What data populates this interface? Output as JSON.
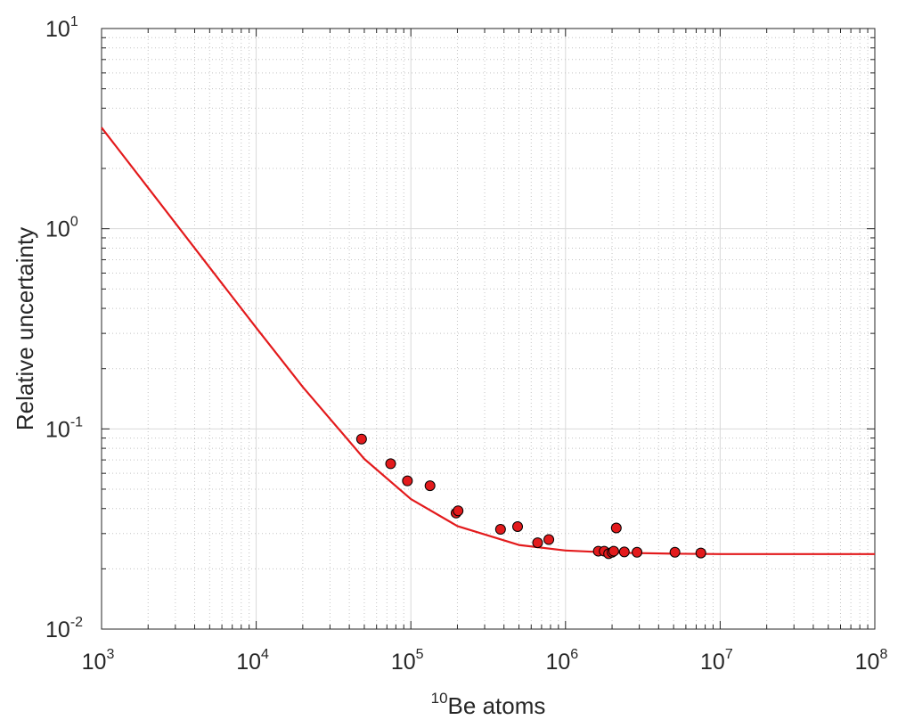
{
  "chart_data": {
    "type": "scatter",
    "xscale": "log",
    "yscale": "log",
    "xlim": [
      1000,
      100000000
    ],
    "ylim": [
      0.01,
      10
    ],
    "grid": true,
    "minor_grid": true,
    "x_ticks": [
      {
        "base": "10",
        "exp": "3",
        "value": 1000
      },
      {
        "base": "10",
        "exp": "4",
        "value": 10000
      },
      {
        "base": "10",
        "exp": "5",
        "value": 100000
      },
      {
        "base": "10",
        "exp": "6",
        "value": 1000000
      },
      {
        "base": "10",
        "exp": "7",
        "value": 10000000
      },
      {
        "base": "10",
        "exp": "8",
        "value": 100000000
      }
    ],
    "y_ticks": [
      {
        "base": "10",
        "exp": "-2",
        "value": 0.01
      },
      {
        "base": "10",
        "exp": "-1",
        "value": 0.1
      },
      {
        "base": "10",
        "exp": "0",
        "value": 1
      },
      {
        "base": "10",
        "exp": "1",
        "value": 10
      }
    ],
    "xlabel_sup": "10",
    "xlabel": "Be atoms",
    "ylabel": "Relative uncertainty",
    "series": [
      {
        "type": "scatter",
        "color": "#e31a1c",
        "edge_color": "#000000",
        "x": [
          48000,
          74000,
          95000,
          133000,
          196000,
          202000,
          380000,
          490000,
          660000,
          780000,
          1630000,
          1780000,
          1900000,
          2000000,
          2050000,
          2130000,
          2400000,
          2900000,
          5100000,
          7500000
        ],
        "y": [
          0.089,
          0.067,
          0.055,
          0.052,
          0.038,
          0.039,
          0.0315,
          0.0325,
          0.027,
          0.028,
          0.0245,
          0.0245,
          0.0238,
          0.0242,
          0.0245,
          0.032,
          0.0243,
          0.0242,
          0.0242,
          0.024
        ]
      },
      {
        "type": "line",
        "color": "#e31a1c",
        "x": [
          1000,
          2000,
          5000,
          10000,
          20000,
          50000,
          100000,
          200000,
          500000,
          1000000,
          2000000,
          5000000,
          10000000,
          100000000
        ],
        "y": [
          3.2,
          1.6,
          0.64,
          0.32,
          0.162,
          0.0708,
          0.0446,
          0.0327,
          0.0263,
          0.0247,
          0.0241,
          0.0238,
          0.0237,
          0.0237
        ]
      }
    ]
  }
}
